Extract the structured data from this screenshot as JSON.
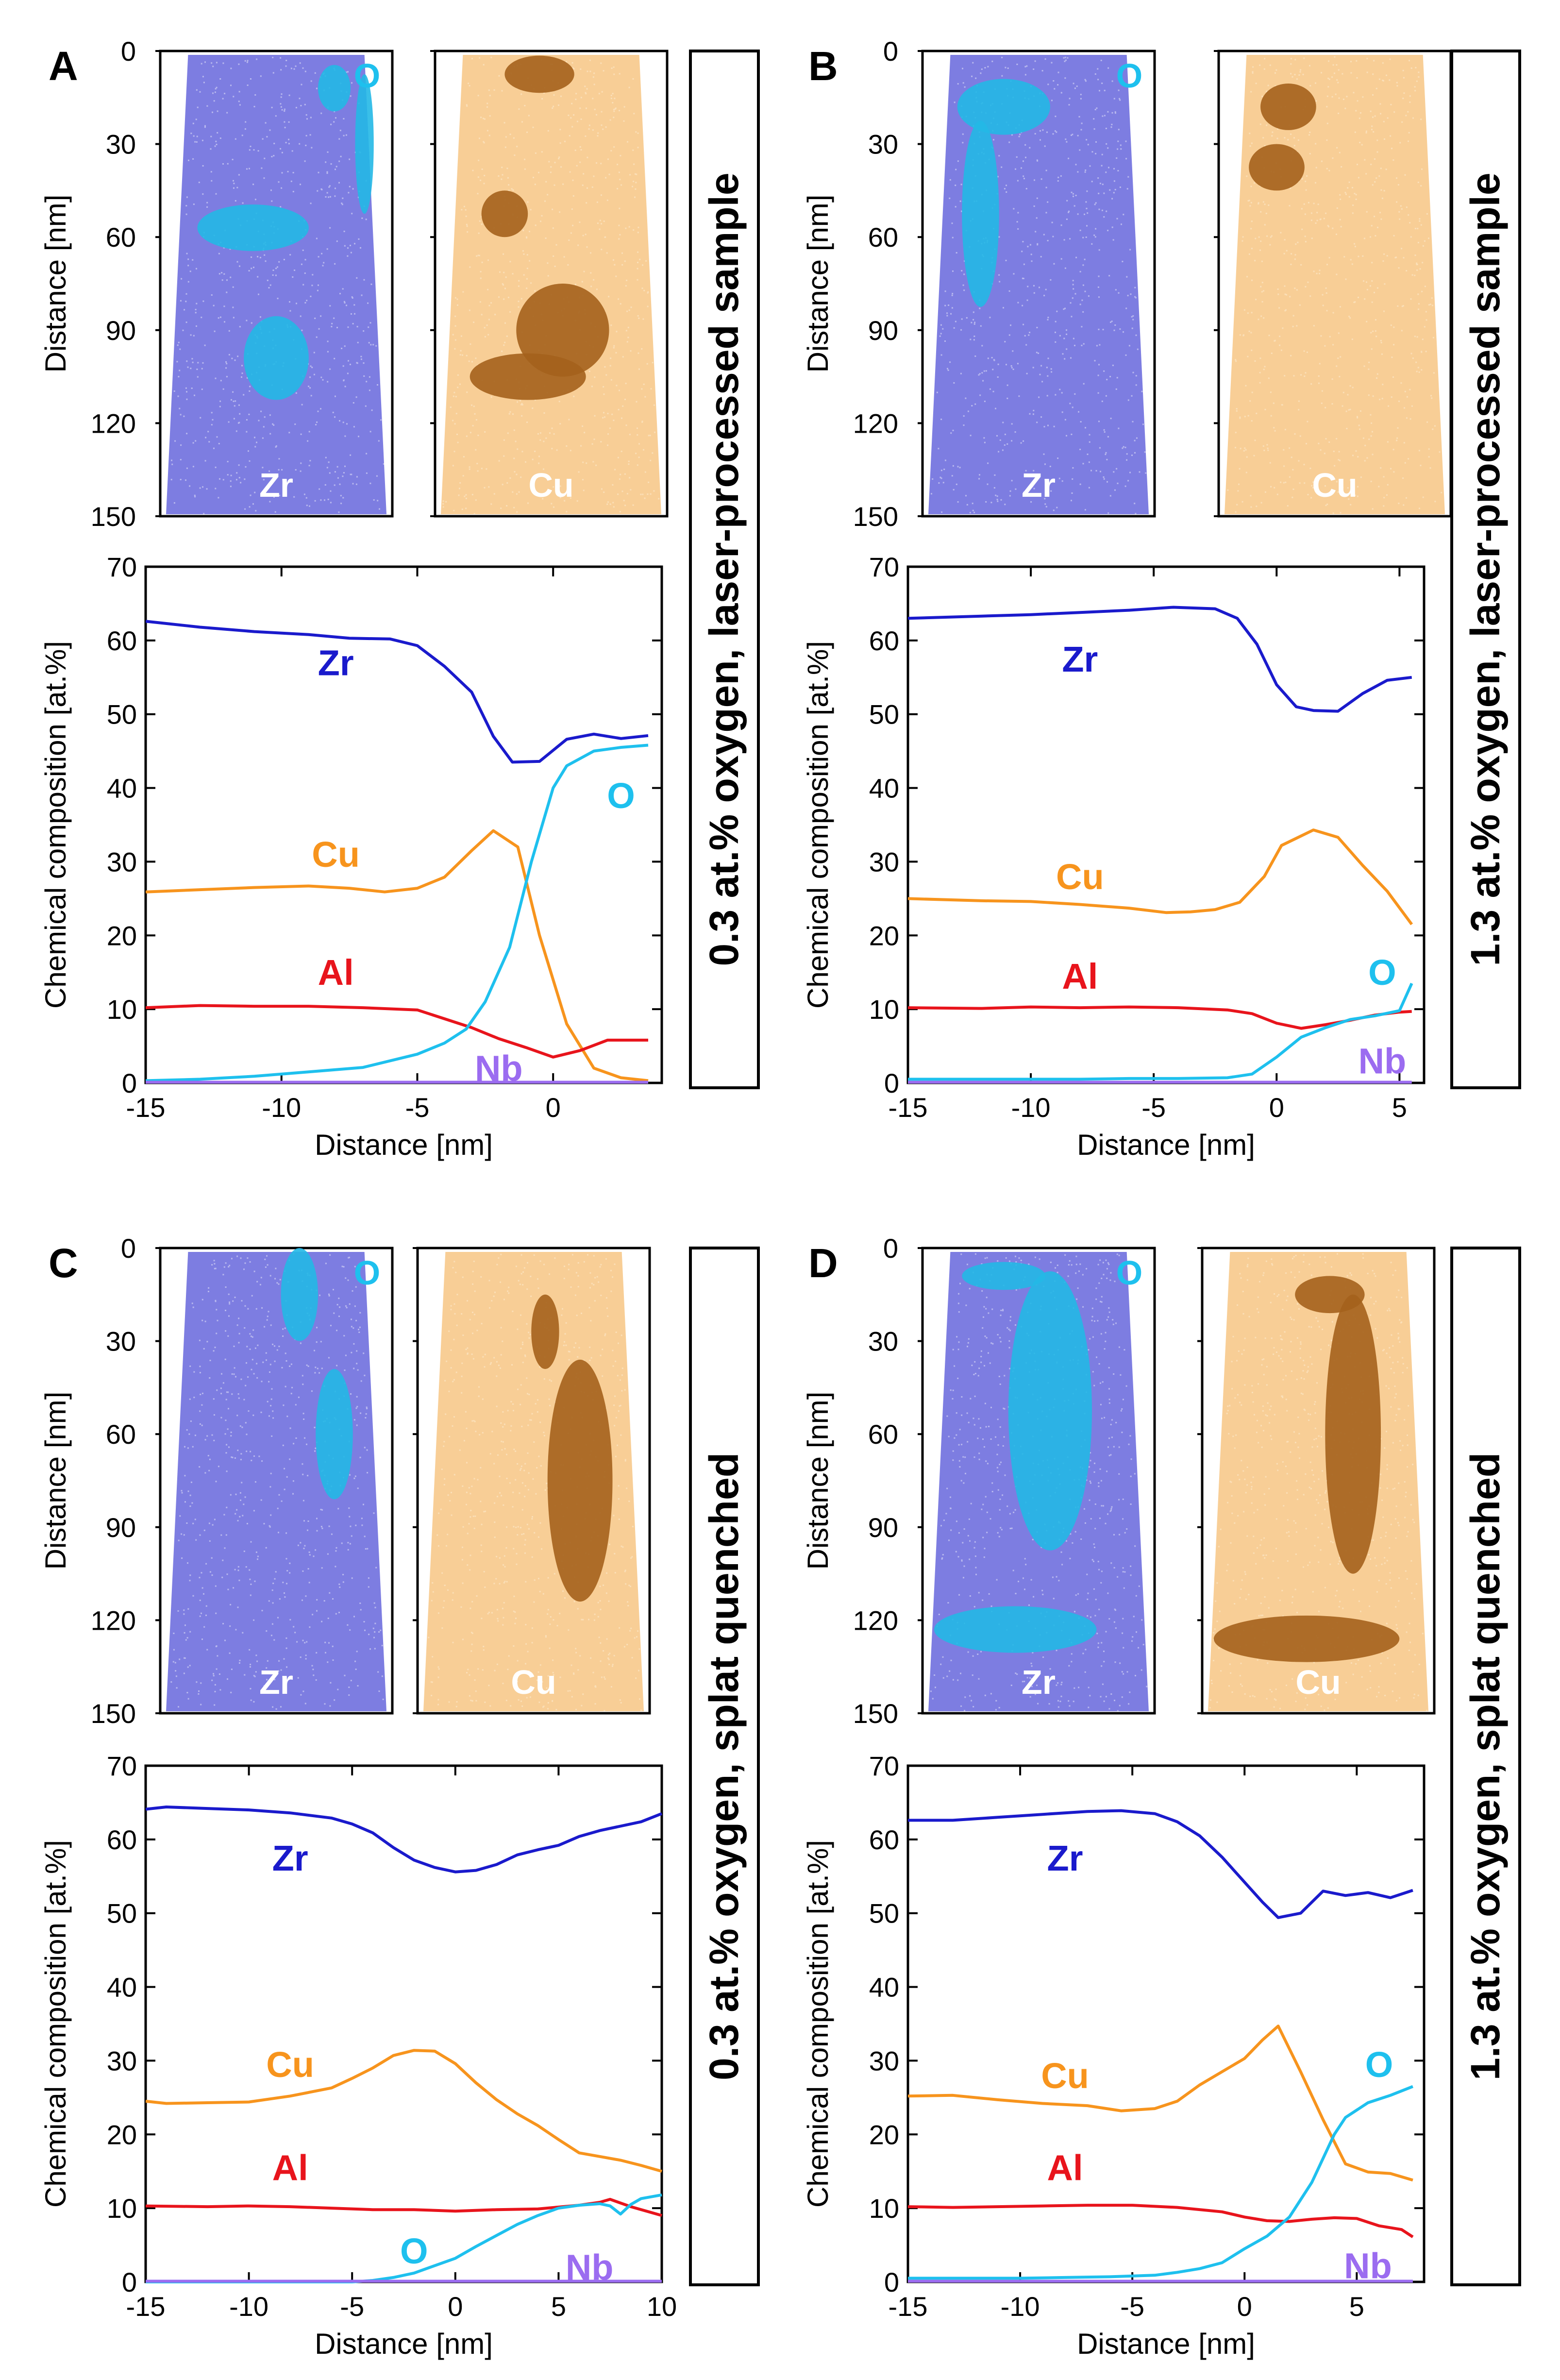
{
  "colors": {
    "Zr": "#1a1acc",
    "Cu": "#f7941d",
    "Al": "#e8141c",
    "O": "#1ec0ee",
    "Nb": "#9b6cf0"
  },
  "chart_data": [
    {
      "panel": "A",
      "type": "line",
      "condition": "0.3 at.% oxygen, laser-processed sample",
      "tomo": {
        "ylabel": "Distance [nm]",
        "yticks": [
          "0",
          "30",
          "60",
          "90",
          "120",
          "150"
        ],
        "labels": {
          "left": "Zr",
          "left_top": "O",
          "right": "Cu"
        }
      },
      "xlabel": "Distance [nm]",
      "ylabel": "Chemical composition [at.%]",
      "xlim": [
        -15,
        4
      ],
      "ylim": [
        0,
        70
      ],
      "xticks": [
        "-15",
        "-10",
        "-5",
        "0"
      ],
      "xtick_values": [
        -15,
        -10,
        -5,
        0
      ],
      "yticks": [
        "0",
        "10",
        "20",
        "30",
        "40",
        "50",
        "60",
        "70"
      ],
      "series": [
        {
          "name": "Zr",
          "label": "Zr",
          "x": [
            -15,
            -13,
            -11,
            -9,
            -7.5,
            -6,
            -5,
            -4,
            -3,
            -2.2,
            -1.5,
            -0.5,
            0.5,
            1.5,
            2.5,
            3.5
          ],
          "values": [
            62.6,
            61.8,
            61.2,
            60.8,
            60.3,
            60.2,
            59.3,
            56.5,
            53,
            47,
            43.5,
            43.6,
            46.6,
            47.3,
            46.7,
            47.1
          ]
        },
        {
          "name": "Cu",
          "label": "Cu",
          "x": [
            -15,
            -13,
            -11,
            -9,
            -7.5,
            -6.2,
            -5,
            -4,
            -3,
            -2.2,
            -1.3,
            -0.5,
            0.5,
            1.5,
            2.5,
            3.5
          ],
          "values": [
            25.9,
            26.2,
            26.5,
            26.7,
            26.4,
            25.9,
            26.4,
            27.9,
            31.5,
            34.2,
            32,
            20,
            8,
            2,
            0.7,
            0.3
          ]
        },
        {
          "name": "Al",
          "label": "Al",
          "x": [
            -15,
            -13,
            -11,
            -9,
            -7,
            -5,
            -4,
            -3,
            -2,
            -1,
            0,
            1,
            2,
            3.5
          ],
          "values": [
            10.2,
            10.5,
            10.4,
            10.4,
            10.2,
            9.9,
            8.7,
            7.5,
            6,
            4.8,
            3.5,
            4.4,
            5.8,
            5.8
          ]
        },
        {
          "name": "O",
          "label": "O",
          "x": [
            -15,
            -13,
            -11,
            -9,
            -7,
            -5,
            -4,
            -3.2,
            -2.5,
            -1.6,
            -0.8,
            0,
            0.5,
            1.5,
            2.5,
            3.5
          ],
          "values": [
            0.3,
            0.5,
            0.9,
            1.5,
            2.1,
            3.9,
            5.4,
            7.3,
            11,
            18.4,
            30,
            40,
            43,
            45,
            45.5,
            45.8
          ]
        },
        {
          "name": "Nb",
          "label": "Nb",
          "x": [
            -15,
            3.5
          ],
          "values": [
            0.1,
            0.1
          ]
        }
      ],
      "label_pos": {
        "Zr": [
          -8,
          57
        ],
        "Cu": [
          -8,
          31
        ],
        "Al": [
          -8,
          15
        ],
        "O": [
          2.5,
          39
        ],
        "Nb": [
          -2,
          2
        ]
      }
    },
    {
      "panel": "B",
      "type": "line",
      "condition": "1.3 at.% oxygen, laser-processed sample",
      "tomo": {
        "ylabel": "Distance [nm]",
        "yticks": [
          "0",
          "30",
          "60",
          "90",
          "120",
          "150"
        ],
        "labels": {
          "left": "Zr",
          "left_top": "O",
          "right": "Cu"
        }
      },
      "xlabel": "Distance [nm]",
      "ylabel": "Chemical composition [at.%]",
      "xlim": [
        -15,
        6
      ],
      "ylim": [
        0,
        70
      ],
      "xticks": [
        "-15",
        "-10",
        "-5",
        "0",
        "5"
      ],
      "xtick_values": [
        -15,
        -10,
        -5,
        0,
        5
      ],
      "yticks": [
        "0",
        "10",
        "20",
        "30",
        "40",
        "50",
        "60",
        "70"
      ],
      "series": [
        {
          "name": "Zr",
          "label": "Zr",
          "x": [
            -15,
            -12,
            -10,
            -8,
            -6,
            -4.2,
            -2.5,
            -1.6,
            -0.8,
            0,
            0.8,
            1.5,
            2.5,
            3.5,
            4.5,
            5.5
          ],
          "values": [
            63,
            63.3,
            63.5,
            63.8,
            64.1,
            64.5,
            64.3,
            63,
            59.5,
            54,
            51,
            50.5,
            50.4,
            52.8,
            54.6,
            55
          ]
        },
        {
          "name": "Cu",
          "label": "Cu",
          "x": [
            -15,
            -12,
            -10,
            -8,
            -6,
            -4.5,
            -3.5,
            -2.5,
            -1.5,
            -0.5,
            0.2,
            1.5,
            2.5,
            3.5,
            4.5,
            5.5
          ],
          "values": [
            25,
            24.7,
            24.6,
            24.2,
            23.7,
            23.1,
            23.2,
            23.5,
            24.5,
            28,
            32.2,
            34.3,
            33.3,
            29.5,
            26,
            21.5
          ]
        },
        {
          "name": "Al",
          "label": "Al",
          "x": [
            -15,
            -12,
            -10,
            -8,
            -6,
            -4,
            -2,
            -1,
            0,
            1,
            2,
            3,
            4,
            5,
            5.5
          ],
          "values": [
            10.2,
            10.1,
            10.3,
            10.2,
            10.3,
            10.2,
            9.9,
            9.4,
            8.1,
            7.4,
            7.9,
            8.5,
            9.2,
            9.6,
            9.7
          ]
        },
        {
          "name": "O",
          "label": "O",
          "x": [
            -15,
            -12,
            -10,
            -8,
            -6,
            -4,
            -2,
            -1,
            0,
            1,
            2,
            3,
            4,
            5,
            5.5
          ],
          "values": [
            0.5,
            0.5,
            0.5,
            0.5,
            0.6,
            0.6,
            0.7,
            1.2,
            3.5,
            6.2,
            7.5,
            8.6,
            9.1,
            9.8,
            13.5
          ]
        },
        {
          "name": "Nb",
          "label": "Nb",
          "x": [
            -15,
            5.5
          ],
          "values": [
            0.1,
            0.1
          ]
        }
      ],
      "label_pos": {
        "Zr": [
          -8,
          57.5
        ],
        "Cu": [
          -8,
          28
        ],
        "Al": [
          -8,
          14.5
        ],
        "O": [
          4.3,
          15
        ],
        "Nb": [
          4.3,
          3
        ]
      }
    },
    {
      "panel": "C",
      "type": "line",
      "condition": "0.3 at.% oxygen, splat quenched",
      "tomo": {
        "ylabel": "Distance [nm]",
        "yticks": [
          "0",
          "30",
          "60",
          "90",
          "120",
          "150"
        ],
        "labels": {
          "left": "Zr",
          "left_top": "O",
          "right": "Cu"
        }
      },
      "xlabel": "Distance [nm]",
      "ylabel": "Chemical composition [at.%]",
      "xlim": [
        -15,
        10
      ],
      "ylim": [
        0,
        70
      ],
      "xticks": [
        "-15",
        "-10",
        "-5",
        "0",
        "5",
        "10"
      ],
      "xtick_values": [
        -15,
        -10,
        -5,
        0,
        5,
        10
      ],
      "yticks": [
        "0",
        "10",
        "20",
        "30",
        "40",
        "50",
        "60",
        "70"
      ],
      "series": [
        {
          "name": "Zr",
          "label": "Zr",
          "x": [
            -15,
            -14,
            -12,
            -10,
            -8,
            -6,
            -5,
            -4,
            -3,
            -2,
            -1,
            0,
            1,
            2,
            3,
            4,
            5,
            6,
            7,
            8,
            9,
            10
          ],
          "values": [
            64.1,
            64.4,
            64.2,
            64,
            63.6,
            62.9,
            62.1,
            60.9,
            58.9,
            57.2,
            56.2,
            55.6,
            55.8,
            56.6,
            57.9,
            58.6,
            59.2,
            60.4,
            61.2,
            61.8,
            62.4,
            63.5
          ]
        },
        {
          "name": "Cu",
          "label": "Cu",
          "x": [
            -15,
            -14,
            -12,
            -10,
            -8,
            -6,
            -5,
            -4,
            -3,
            -2,
            -1,
            0,
            1,
            2,
            3,
            4,
            5,
            6,
            7,
            8,
            9,
            10
          ],
          "values": [
            24.5,
            24.2,
            24.3,
            24.4,
            25.2,
            26.3,
            27.6,
            29,
            30.7,
            31.4,
            31.3,
            29.6,
            27,
            24.7,
            22.8,
            21.2,
            19.3,
            17.5,
            17,
            16.5,
            15.8,
            15
          ]
        },
        {
          "name": "Al",
          "label": "Al",
          "x": [
            -15,
            -12,
            -10,
            -8,
            -6,
            -4,
            -2,
            0,
            2,
            4,
            6,
            7,
            7.5,
            8.5,
            10
          ],
          "values": [
            10.3,
            10.2,
            10.3,
            10.2,
            10,
            9.8,
            9.8,
            9.6,
            9.8,
            9.9,
            10.4,
            10.8,
            11.2,
            10.2,
            9
          ]
        },
        {
          "name": "O",
          "label": "O",
          "x": [
            -15,
            -8,
            -5,
            -4,
            -3,
            -2,
            -1,
            0,
            1,
            2,
            3,
            4,
            5,
            6,
            7,
            7.5,
            8,
            8.5,
            9,
            10
          ],
          "values": [
            0,
            0,
            0,
            0.2,
            0.6,
            1.2,
            2.2,
            3.2,
            4.8,
            6.3,
            7.8,
            9,
            10,
            10.4,
            10.6,
            10.3,
            9.2,
            10.5,
            11.3,
            11.8
          ]
        },
        {
          "name": "Nb",
          "label": "Nb",
          "x": [
            -15,
            10
          ],
          "values": [
            0.1,
            0.1
          ]
        }
      ],
      "label_pos": {
        "Zr": [
          -8,
          57.5
        ],
        "Cu": [
          -8,
          29.5
        ],
        "Al": [
          -8,
          15.5
        ],
        "O": [
          -2,
          4.2
        ],
        "Nb": [
          6.5,
          2
        ]
      }
    },
    {
      "panel": "D",
      "type": "line",
      "condition": "1.3 at.% oxygen, splat quenched",
      "tomo": {
        "ylabel": "Distance [nm]",
        "yticks": [
          "0",
          "30",
          "60",
          "90",
          "120",
          "150"
        ],
        "labels": {
          "left": "Zr",
          "left_top": "O",
          "right": "Cu"
        }
      },
      "xlabel": "Distance [nm]",
      "ylabel": "Chemical composition [at.%]",
      "xlim": [
        -15,
        8
      ],
      "ylim": [
        0,
        70
      ],
      "xticks": [
        "-15",
        "-10",
        "-5",
        "0",
        "5"
      ],
      "xtick_values": [
        -15,
        -10,
        -5,
        0,
        5
      ],
      "yticks": [
        "0",
        "10",
        "20",
        "30",
        "40",
        "50",
        "60",
        "70"
      ],
      "series": [
        {
          "name": "Zr",
          "label": "Zr",
          "x": [
            -15,
            -13,
            -11,
            -9,
            -7,
            -5.5,
            -4,
            -3,
            -2,
            -1,
            0,
            0.8,
            1.5,
            2.5,
            3.5,
            4.5,
            5.5,
            6.5,
            7.5
          ],
          "values": [
            62.6,
            62.6,
            63,
            63.4,
            63.8,
            63.9,
            63.5,
            62.4,
            60.5,
            57.6,
            54.2,
            51.5,
            49.4,
            50,
            53,
            52.4,
            52.8,
            52.1,
            53.1
          ]
        },
        {
          "name": "Cu",
          "label": "Cu",
          "x": [
            -15,
            -13,
            -11,
            -9,
            -7,
            -5.5,
            -4,
            -3,
            -2,
            -1,
            0,
            0.8,
            1.5,
            2.5,
            3.5,
            4.5,
            5.5,
            6.5,
            7.5
          ],
          "values": [
            25.2,
            25.3,
            24.7,
            24.2,
            23.9,
            23.2,
            23.5,
            24.5,
            26.7,
            28.5,
            30.3,
            32.8,
            34.7,
            28.5,
            22,
            16,
            14.9,
            14.7,
            13.8
          ]
        },
        {
          "name": "Al",
          "label": "Al",
          "x": [
            -15,
            -13,
            -11,
            -9,
            -7,
            -5,
            -3,
            -1,
            0,
            1,
            2,
            3,
            4,
            5,
            6,
            7,
            7.5
          ],
          "values": [
            10.2,
            10.1,
            10.2,
            10.3,
            10.4,
            10.4,
            10.1,
            9.5,
            8.8,
            8.3,
            8.2,
            8.5,
            8.7,
            8.6,
            7.6,
            7.1,
            6.1
          ]
        },
        {
          "name": "O",
          "label": "O",
          "x": [
            -15,
            -12,
            -10,
            -8,
            -6,
            -4,
            -3,
            -2,
            -1,
            0,
            1,
            2,
            3,
            4,
            4.5,
            5.5,
            6.5,
            7.5
          ],
          "values": [
            0.5,
            0.5,
            0.5,
            0.6,
            0.7,
            0.9,
            1.3,
            1.8,
            2.6,
            4.5,
            6.2,
            8.8,
            13.5,
            20,
            22.3,
            24.3,
            25.3,
            26.5
          ]
        },
        {
          "name": "Nb",
          "label": "Nb",
          "x": [
            -15,
            7.5
          ],
          "values": [
            0.1,
            0.1
          ]
        }
      ],
      "label_pos": {
        "Zr": [
          -8,
          57.5
        ],
        "Cu": [
          -8,
          28
        ],
        "Al": [
          -8,
          15.5
        ],
        "O": [
          6,
          29.5
        ],
        "Nb": [
          5.5,
          2.2
        ]
      }
    }
  ]
}
